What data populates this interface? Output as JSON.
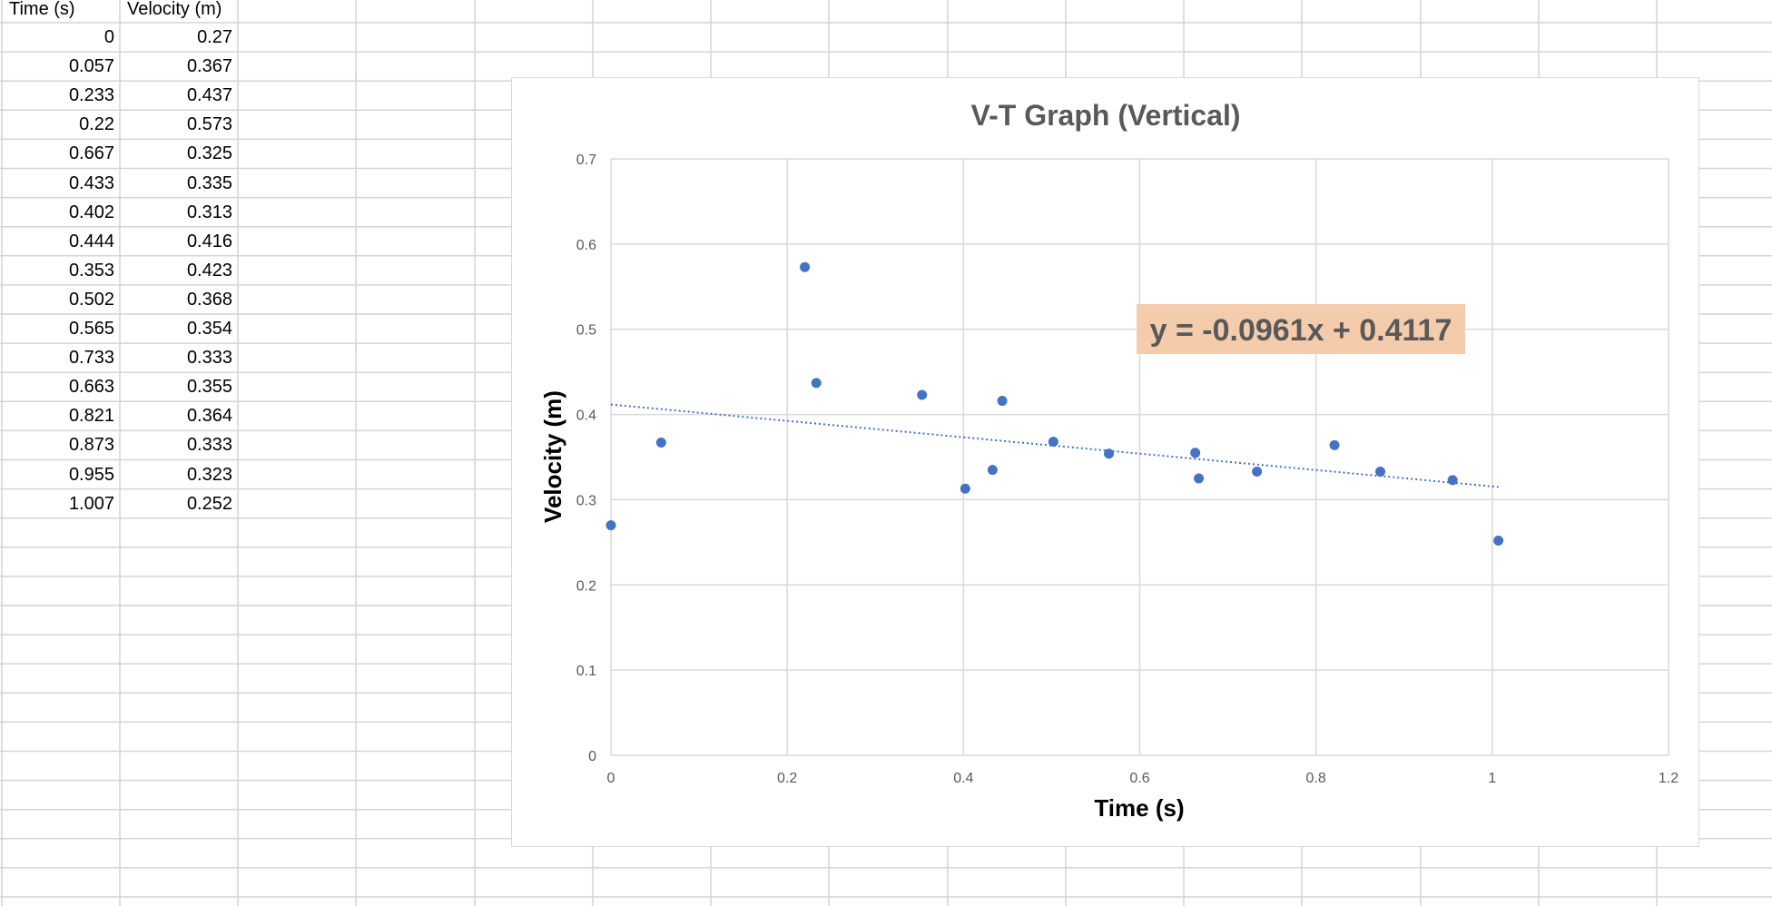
{
  "spreadsheet": {
    "headers": [
      "Time (s)",
      "Velocity (m)"
    ],
    "rows": [
      [
        "0",
        "0.27"
      ],
      [
        "0.057",
        "0.367"
      ],
      [
        "0.233",
        "0.437"
      ],
      [
        "0.22",
        "0.573"
      ],
      [
        "0.667",
        "0.325"
      ],
      [
        "0.433",
        "0.335"
      ],
      [
        "0.402",
        "0.313"
      ],
      [
        "0.444",
        "0.416"
      ],
      [
        "0.353",
        "0.423"
      ],
      [
        "0.502",
        "0.368"
      ],
      [
        "0.565",
        "0.354"
      ],
      [
        "0.733",
        "0.333"
      ],
      [
        "0.663",
        "0.355"
      ],
      [
        "0.821",
        "0.364"
      ],
      [
        "0.873",
        "0.333"
      ],
      [
        "0.955",
        "0.323"
      ],
      [
        "1.007",
        "0.252"
      ]
    ]
  },
  "colors": {
    "marker": "#4472C4",
    "trendline": "#4472C4",
    "gridline": "#d9d9d9",
    "equation_bg": "#F4CCAC"
  },
  "chart_data": {
    "type": "scatter",
    "title": "V-T Graph (Vertical)",
    "xlabel": "Time (s)",
    "ylabel": "Velocity (m)",
    "xlim": [
      0,
      1.2
    ],
    "ylim": [
      0,
      0.7
    ],
    "xticks": [
      0,
      0.2,
      0.4,
      0.6,
      0.8,
      1,
      1.2
    ],
    "yticks": [
      0,
      0.1,
      0.2,
      0.3,
      0.4,
      0.5,
      0.6,
      0.7
    ],
    "grid": true,
    "legend": "none",
    "x": [
      0,
      0.057,
      0.233,
      0.22,
      0.667,
      0.433,
      0.402,
      0.444,
      0.353,
      0.502,
      0.565,
      0.733,
      0.663,
      0.821,
      0.873,
      0.955,
      1.007
    ],
    "y": [
      0.27,
      0.367,
      0.437,
      0.573,
      0.325,
      0.335,
      0.313,
      0.416,
      0.423,
      0.368,
      0.354,
      0.333,
      0.355,
      0.364,
      0.333,
      0.323,
      0.252
    ],
    "trendline": {
      "type": "linear",
      "slope": -0.0961,
      "intercept": 0.4117,
      "x_range": [
        0,
        1.007
      ],
      "style": "dotted",
      "equation_label": "y = -0.0961x + 0.4117"
    }
  }
}
